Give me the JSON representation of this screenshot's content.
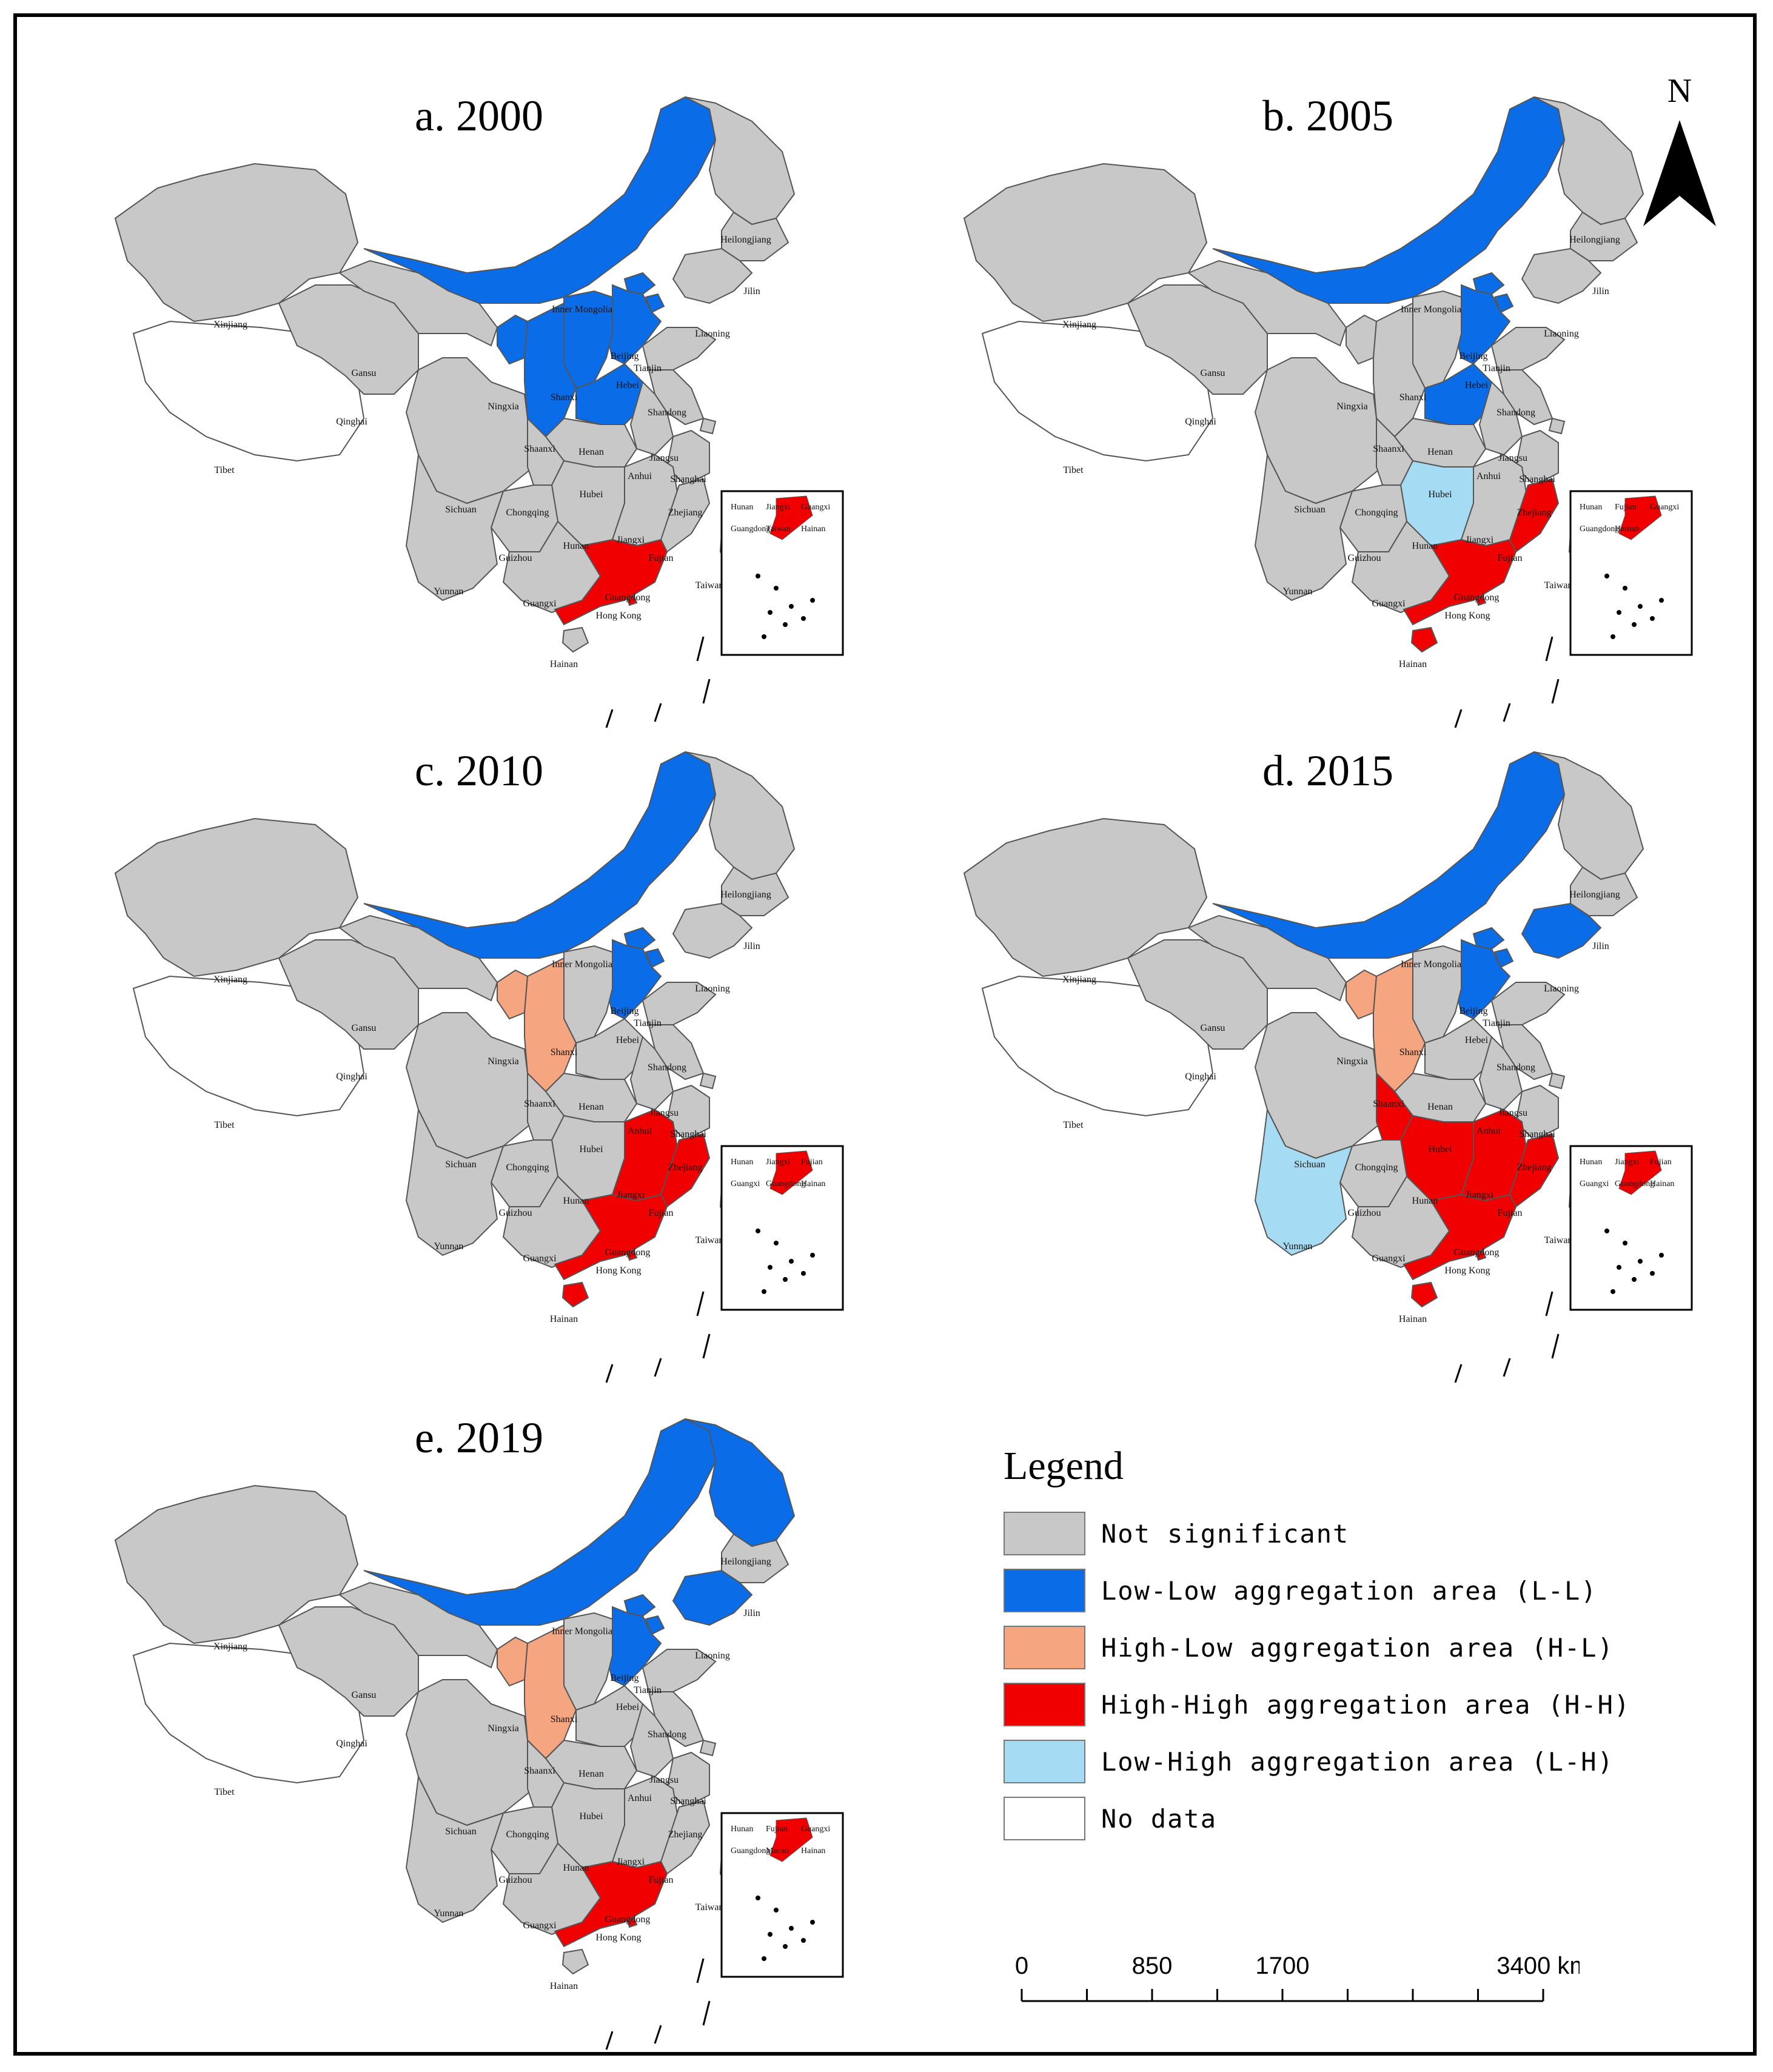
{
  "panels": [
    {
      "id": "a",
      "title": "a. 2000",
      "colors": {
        "Inner Mongolia": "ll",
        "Beijing": "ll",
        "Tianjin": "ll",
        "Hebei": "ll",
        "Shanxi": "ll",
        "Shaanxi": "ll",
        "Henan": "ll",
        "Ningxia": "ll",
        "Guangdong": "hh",
        "Hong Kong": "hh"
      },
      "inset_labels": [
        "Hunan",
        "Jiangxi",
        "Guangxi",
        "Guangdong",
        "Taiwan",
        "Hainan"
      ]
    },
    {
      "id": "b",
      "title": "b. 2005",
      "colors": {
        "Inner Mongolia": "ll",
        "Beijing": "ll",
        "Tianjin": "ll",
        "Hebei": "ll",
        "Henan": "ll",
        "Hunan": "lh",
        "Guangdong": "hh",
        "Fujian": "hh",
        "Hainan": "hh",
        "Hong Kong": "hh"
      },
      "inset_labels": [
        "Hunan",
        "Fujian",
        "Guangxi",
        "Guangdong",
        "Hainan"
      ]
    },
    {
      "id": "c",
      "title": "c. 2010",
      "colors": {
        "Inner Mongolia": "ll",
        "Beijing": "ll",
        "Tianjin": "ll",
        "Hebei": "ll",
        "Shaanxi": "hl",
        "Ningxia": "hl",
        "Jiangxi": "hh",
        "Fujian": "hh",
        "Guangdong": "hh",
        "Hainan": "hh",
        "Hong Kong": "hh"
      },
      "inset_labels": [
        "Hunan",
        "Jiangxi",
        "Fujian",
        "Guangxi",
        "Guangdong",
        "Hainan"
      ]
    },
    {
      "id": "d",
      "title": "d. 2015",
      "colors": {
        "Inner Mongolia": "ll",
        "Liaoning": "ll",
        "Beijing": "ll",
        "Tianjin": "ll",
        "Hebei": "ll",
        "Shaanxi": "hl",
        "Ningxia": "hl",
        "Chongqing": "hh",
        "Hunan": "hh",
        "Jiangxi": "hh",
        "Fujian": "hh",
        "Guangdong": "hh",
        "Hainan": "hh",
        "Hong Kong": "hh",
        "Yunnan": "lh"
      },
      "inset_labels": [
        "Hunan",
        "Jiangxi",
        "Fujian",
        "Guangxi",
        "Guangdong",
        "Hainan"
      ]
    },
    {
      "id": "e",
      "title": "e. 2019",
      "colors": {
        "Inner Mongolia": "ll",
        "Heilongjiang": "ll",
        "Liaoning": "ll",
        "Beijing": "ll",
        "Tianjin": "ll",
        "Hebei": "ll",
        "Shaanxi": "hl",
        "Ningxia": "hl",
        "Guangdong": "hh",
        "Hong Kong": "hh"
      },
      "inset_labels": [
        "Hunan",
        "Fujian",
        "Guangxi",
        "Guangdong",
        "Macao",
        "Hainan"
      ]
    }
  ],
  "province_labels": [
    "Xinjiang",
    "Tibet",
    "Qinghai",
    "Gansu",
    "Inner Mongolia",
    "Heilongjiang",
    "Jilin",
    "Liaoning",
    "Beijing",
    "Tianjin",
    "Hebei",
    "Shanxi",
    "Shandong",
    "Ningxia",
    "Shaanxi",
    "Henan",
    "Jiangsu",
    "Anhui",
    "Shanghai",
    "Hubei",
    "Sichuan",
    "Chongqing",
    "Zhejiang",
    "Hunan",
    "Jiangxi",
    "Fujian",
    "Guizhou",
    "Yunnan",
    "Guangxi",
    "Guangdong",
    "Hong Kong",
    "Taiwan",
    "Hainan"
  ],
  "north_label": "N",
  "legend": {
    "title": "Legend",
    "items": [
      {
        "key": "ns",
        "label": "Not significant",
        "color": "#c8c8c8"
      },
      {
        "key": "ll",
        "label": "Low-Low aggregation area (L-L)",
        "color": "#0a6ce6"
      },
      {
        "key": "hl",
        "label": "High-Low aggregation area (H-L)",
        "color": "#f5a57f"
      },
      {
        "key": "hh",
        "label": "High-High aggregation area (H-H)",
        "color": "#f00000"
      },
      {
        "key": "lh",
        "label": "Low-High aggregation area (L-H)",
        "color": "#a6dcf3"
      },
      {
        "key": "nd",
        "label": "No data",
        "color": "#ffffff"
      }
    ]
  },
  "scale": {
    "ticks": [
      "0",
      "850",
      "1700",
      "3400 km"
    ]
  }
}
